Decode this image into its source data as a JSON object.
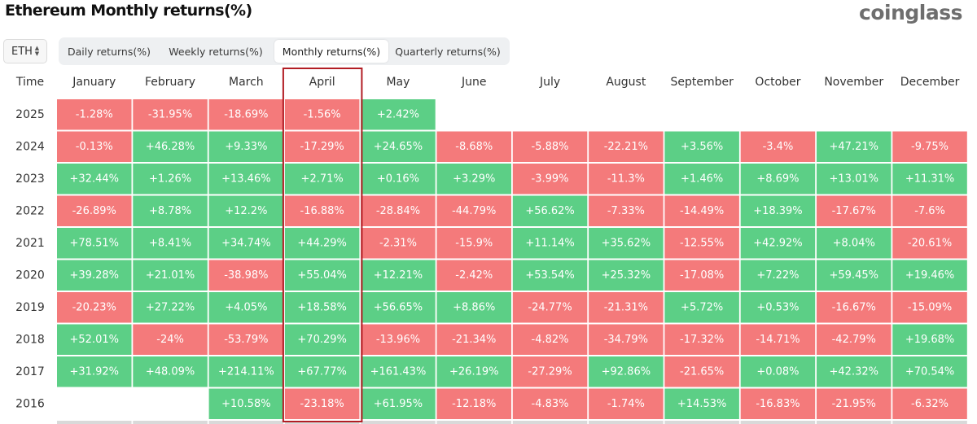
{
  "header": {
    "title": "Ethereum Monthly returns(%)",
    "logo_text": "coinglass"
  },
  "controls": {
    "asset": "ETH",
    "tabs": [
      "Daily returns(%)",
      "Weekly returns(%)",
      "Monthly returns(%)",
      "Quarterly returns(%)"
    ],
    "active_tab": "Monthly returns(%)"
  },
  "colors": {
    "positive": "#5ccf86",
    "negative": "#f47a7b",
    "highlight_border": "#b21d24",
    "text": "#ffffff"
  },
  "chart_data": {
    "type": "table",
    "title": "Ethereum Monthly returns(%)",
    "row_header": "Time",
    "columns": [
      "January",
      "February",
      "March",
      "April",
      "May",
      "June",
      "July",
      "August",
      "September",
      "October",
      "November",
      "December"
    ],
    "highlighted_column": "April",
    "rows": [
      {
        "year": "2025",
        "values": [
          "-1.28%",
          "-31.95%",
          "-18.69%",
          "-1.56%",
          "+2.42%",
          null,
          null,
          null,
          null,
          null,
          null,
          null
        ]
      },
      {
        "year": "2024",
        "values": [
          "-0.13%",
          "+46.28%",
          "+9.33%",
          "-17.29%",
          "+24.65%",
          "-8.68%",
          "-5.88%",
          "-22.21%",
          "+3.56%",
          "-3.4%",
          "+47.21%",
          "-9.75%"
        ]
      },
      {
        "year": "2023",
        "values": [
          "+32.44%",
          "+1.26%",
          "+13.46%",
          "+2.71%",
          "+0.16%",
          "+3.29%",
          "-3.99%",
          "-11.3%",
          "+1.46%",
          "+8.69%",
          "+13.01%",
          "+11.31%"
        ]
      },
      {
        "year": "2022",
        "values": [
          "-26.89%",
          "+8.78%",
          "+12.2%",
          "-16.88%",
          "-28.84%",
          "-44.79%",
          "+56.62%",
          "-7.33%",
          "-14.49%",
          "+18.39%",
          "-17.67%",
          "-7.6%"
        ]
      },
      {
        "year": "2021",
        "values": [
          "+78.51%",
          "+8.41%",
          "+34.74%",
          "+44.29%",
          "-2.31%",
          "-15.9%",
          "+11.14%",
          "+35.62%",
          "-12.55%",
          "+42.92%",
          "+8.04%",
          "-20.61%"
        ]
      },
      {
        "year": "2020",
        "values": [
          "+39.28%",
          "+21.01%",
          "-38.98%",
          "+55.04%",
          "+12.21%",
          "-2.42%",
          "+53.54%",
          "+25.32%",
          "-17.08%",
          "+7.22%",
          "+59.45%",
          "+19.46%"
        ]
      },
      {
        "year": "2019",
        "values": [
          "-20.23%",
          "+27.22%",
          "+4.05%",
          "+18.58%",
          "+56.65%",
          "+8.86%",
          "-24.77%",
          "-21.31%",
          "+5.72%",
          "+0.53%",
          "-16.67%",
          "-15.09%"
        ]
      },
      {
        "year": "2018",
        "values": [
          "+52.01%",
          "-24%",
          "-53.79%",
          "+70.29%",
          "-13.96%",
          "-21.34%",
          "-4.82%",
          "-34.79%",
          "-17.32%",
          "-14.71%",
          "-42.79%",
          "+19.68%"
        ]
      },
      {
        "year": "2017",
        "values": [
          "+31.92%",
          "+48.09%",
          "+214.11%",
          "+67.77%",
          "+161.43%",
          "+26.19%",
          "-27.29%",
          "+92.86%",
          "-21.65%",
          "+0.08%",
          "+42.32%",
          "+70.54%"
        ]
      },
      {
        "year": "2016",
        "values": [
          null,
          null,
          "+10.58%",
          "-23.18%",
          "+61.95%",
          "-12.18%",
          "-4.83%",
          "-1.74%",
          "+14.53%",
          "-16.83%",
          "-21.95%",
          "-6.32%"
        ]
      }
    ]
  }
}
